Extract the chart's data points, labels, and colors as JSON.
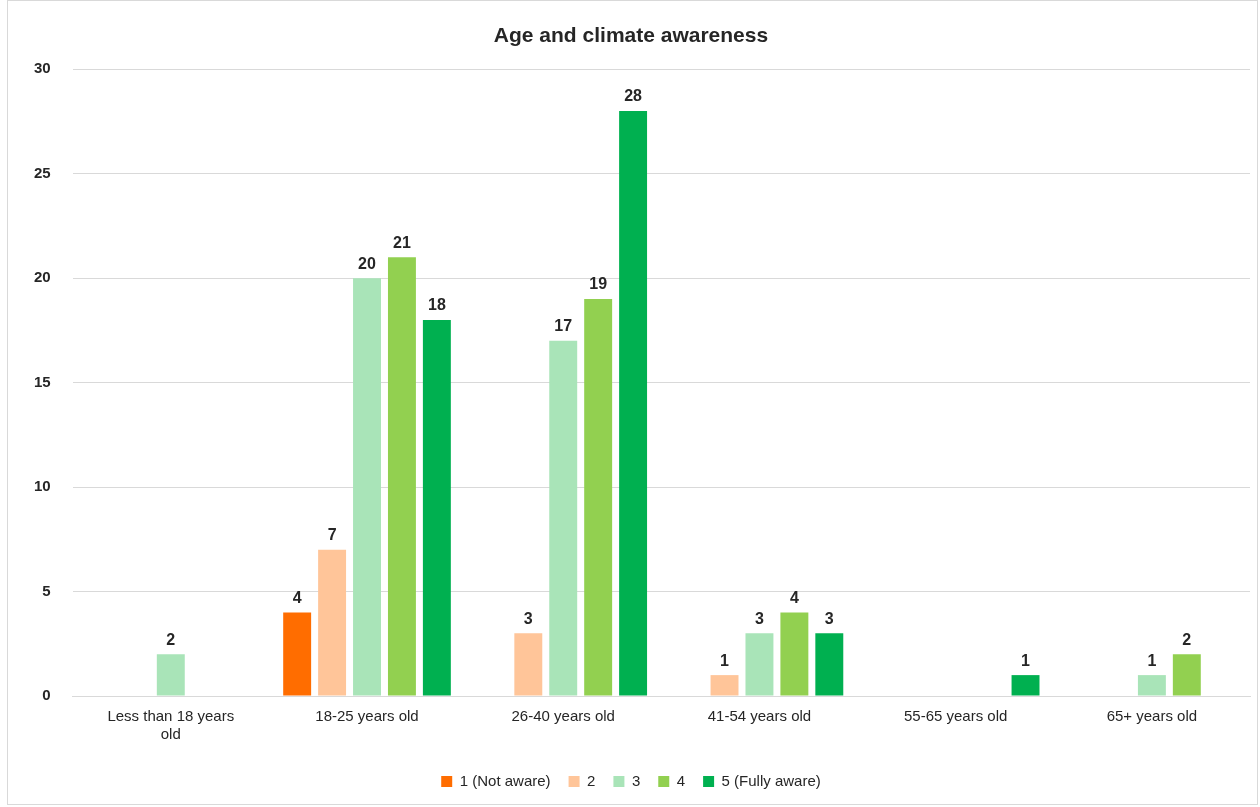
{
  "chart_data": {
    "type": "bar",
    "title": "Age and climate awareness",
    "categories": [
      "Less than 18 years old",
      "18-25 years old",
      "26-40 years old",
      "41-54 years old",
      "55-65 years old",
      "65+ years old"
    ],
    "series": [
      {
        "name": "1 (Not aware)",
        "color": "#ff6d00",
        "values": [
          null,
          4,
          null,
          null,
          null,
          null
        ]
      },
      {
        "name": "2",
        "color": "#ffc599",
        "values": [
          null,
          7,
          3,
          1,
          null,
          null
        ]
      },
      {
        "name": "3",
        "color": "#a9e4b8",
        "values": [
          2,
          20,
          17,
          3,
          null,
          1
        ]
      },
      {
        "name": "4",
        "color": "#92d050",
        "values": [
          null,
          21,
          19,
          4,
          null,
          2
        ]
      },
      {
        "name": "5 (Fully aware)",
        "color": "#00b050",
        "values": [
          null,
          18,
          28,
          3,
          1,
          null
        ]
      }
    ],
    "ylim": [
      0,
      30
    ],
    "yticks": [
      0,
      5,
      10,
      15,
      20,
      25,
      30
    ],
    "grid": "y",
    "legend": "bottom",
    "data_labels": true
  }
}
